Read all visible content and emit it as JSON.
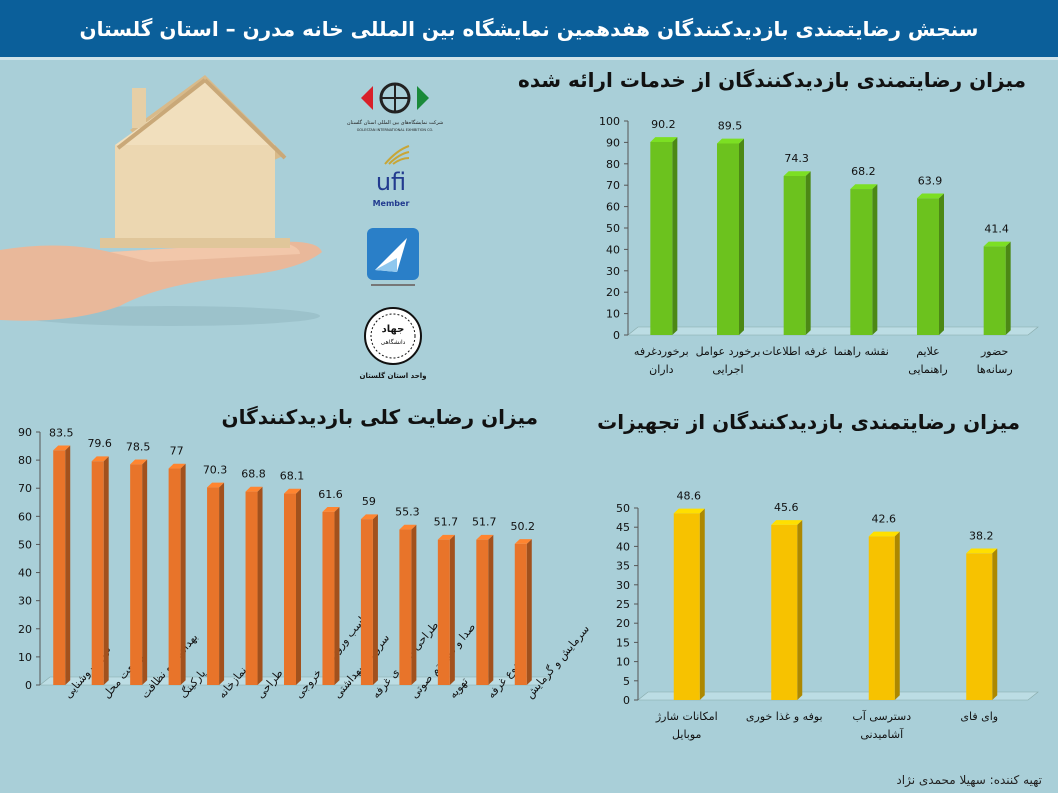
{
  "header": {
    "title": "سنجش رضایتمندی بازدیدکنندگان هفدهمین نمایشگاه بین المللی خانه مدرن – استان گلستان"
  },
  "logos": {
    "golestan": "شرکت نمایشگاه‌های بین المللی استان گلستان",
    "golestan_en": "GOLESTAN INTERNATIONAL EXHIBITION CO.",
    "ufi": "ufi",
    "ufi_member": "Member",
    "jahad": "جهاد",
    "jahad_sub": "دانشگاهی",
    "jahad_unit": "واحد استان گلستان"
  },
  "credit": "تهیه کننده: سهیلا محمدی نژاد",
  "chart_data": [
    {
      "id": "services",
      "type": "bar",
      "title": "میزان رضایتمندی بازدیدکنندگان از خدمات ارائه شده",
      "color": "#6cc21e",
      "ylim": [
        0,
        100
      ],
      "yticks": [
        0,
        10,
        20,
        30,
        40,
        50,
        60,
        70,
        80,
        90,
        100
      ],
      "categories": [
        [
          "برخوردغرفه",
          "داران"
        ],
        [
          "برخورد عوامل",
          "اجرایی"
        ],
        [
          "غرفه اطلاعات"
        ],
        [
          "نقشه راهنما"
        ],
        [
          "علایم",
          "راهنمایی"
        ],
        [
          "حضور",
          "رسانه‌ها"
        ]
      ],
      "values": [
        90.2,
        89.5,
        74.3,
        68.2,
        63.9,
        41.4
      ]
    },
    {
      "id": "overall",
      "type": "bar",
      "title": "میزان رضایت کلی بازدیدکنندگان",
      "color": "#e8742a",
      "ylim": [
        0,
        90
      ],
      "yticks": [
        0,
        10,
        20,
        30,
        40,
        50,
        60,
        70,
        80,
        90
      ],
      "categories": [
        "نور و روشنایی",
        "وسعت محل",
        "بهداشت و نظافت",
        "پارکینگ",
        "نمازخانه",
        "طراحی",
        "تناسب ورودی و خروجی",
        "سرویس بهداشتی",
        "طراحی ظاهری غرفه",
        "صدا و سیستم صوتی",
        "تهویه",
        "تنوع غرفه",
        "سرمایش و گرمایش"
      ],
      "values": [
        83.5,
        79.6,
        78.5,
        77,
        70.3,
        68.8,
        68.1,
        61.6,
        59,
        55.3,
        51.7,
        51.7,
        50.2
      ]
    },
    {
      "id": "equipment",
      "type": "bar",
      "title": "میزان رضایتمندی بازدیدکنندگان از تجهیزات",
      "color": "#f7c200",
      "ylim": [
        0,
        50
      ],
      "yticks": [
        0,
        5,
        10,
        15,
        20,
        25,
        30,
        35,
        40,
        45,
        50
      ],
      "categories": [
        [
          "امکانات شارژ",
          "موبایل"
        ],
        [
          "بوفه و غذا خوری"
        ],
        [
          "دسترسی آب",
          "آشامیدنی"
        ],
        [
          "وای فای"
        ]
      ],
      "values": [
        48.6,
        45.6,
        42.6,
        38.2
      ]
    }
  ]
}
